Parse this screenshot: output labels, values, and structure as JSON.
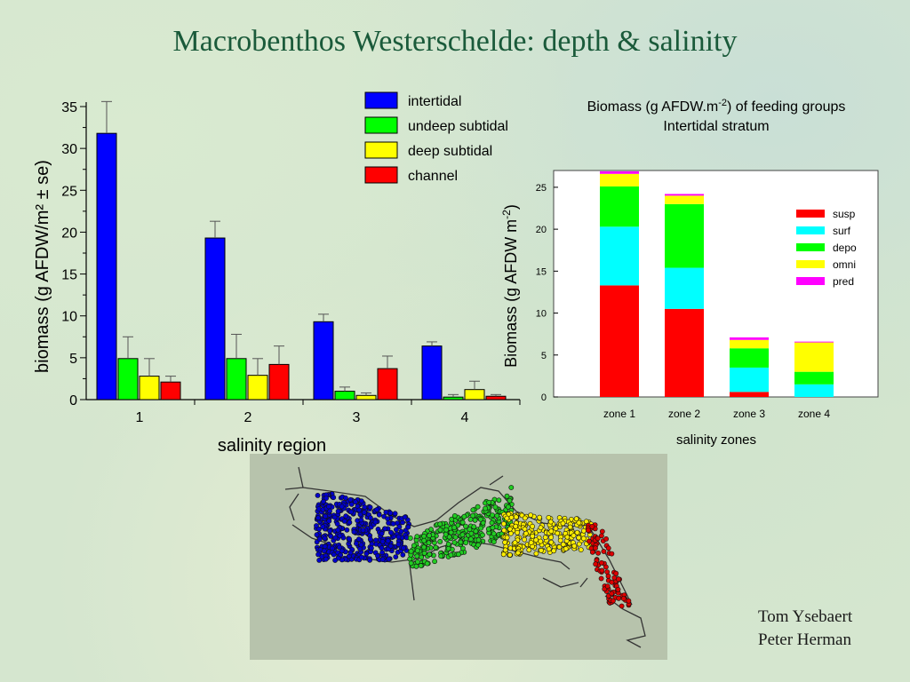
{
  "slide": {
    "title": "Macrobenthos Westerschelde: depth & salinity",
    "credits": [
      "Tom Ysebaert",
      "Peter Herman"
    ]
  },
  "chart_data": [
    {
      "type": "bar",
      "categories": [
        "1",
        "2",
        "3",
        "4"
      ],
      "series": [
        {
          "name": "intertidal",
          "color": "#0000ff",
          "values": [
            31.8,
            19.3,
            9.3,
            6.4
          ],
          "errors": [
            3.8,
            2.0,
            0.9,
            0.5
          ]
        },
        {
          "name": "undeep subtidal",
          "color": "#00ff00",
          "values": [
            4.9,
            4.9,
            1.0,
            0.3
          ],
          "errors": [
            2.6,
            2.9,
            0.5,
            0.3
          ]
        },
        {
          "name": "deep subtidal",
          "color": "#ffff00",
          "values": [
            2.8,
            2.9,
            0.5,
            1.2
          ],
          "errors": [
            2.1,
            2.0,
            0.3,
            1.0
          ]
        },
        {
          "name": "channel",
          "color": "#ff0000",
          "values": [
            2.1,
            4.2,
            3.7,
            0.4
          ],
          "errors": [
            0.7,
            2.2,
            1.5,
            0.2
          ]
        }
      ],
      "xlabel": "salinity region",
      "ylabel": "biomass (g AFDW/m² ± se)",
      "ylim": [
        0,
        35
      ],
      "yticks": [
        0,
        5,
        10,
        15,
        20,
        25,
        30,
        35
      ],
      "legend_position": "top-right"
    },
    {
      "type": "bar",
      "stacked": true,
      "title_line1_pre": "Biomass (g AFDW.m",
      "title_line1_sup": "-2",
      "title_line1_post": ") of feeding groups",
      "subtitle": "Intertidal stratum",
      "categories": [
        "zone 1",
        "zone 2",
        "zone 3",
        "zone 4"
      ],
      "series": [
        {
          "name": "susp",
          "color": "#ff0000",
          "values": [
            13.3,
            10.5,
            0.6,
            0.0
          ]
        },
        {
          "name": "surf",
          "color": "#00ffff",
          "values": [
            7.0,
            4.9,
            2.9,
            1.5
          ]
        },
        {
          "name": "depo",
          "color": "#00ff00",
          "values": [
            4.8,
            7.6,
            2.3,
            1.5
          ]
        },
        {
          "name": "omni",
          "color": "#ffff00",
          "values": [
            1.5,
            1.0,
            1.0,
            3.5
          ]
        },
        {
          "name": "pred",
          "color": "#ff00ff",
          "values": [
            0.3,
            0.2,
            0.3,
            0.1
          ]
        }
      ],
      "xlabel": "salinity zones",
      "ylabel_pre": "Biomass (g AFDW m",
      "ylabel_sup": "-2",
      "ylabel_post": ")",
      "ylim": [
        0,
        27
      ],
      "yticks": [
        0,
        5,
        10,
        15,
        20,
        25
      ],
      "legend_position": "top-right"
    }
  ],
  "map": {
    "region_colors": [
      "#0000cc",
      "#22cc22",
      "#ffee00",
      "#dd0000"
    ]
  }
}
